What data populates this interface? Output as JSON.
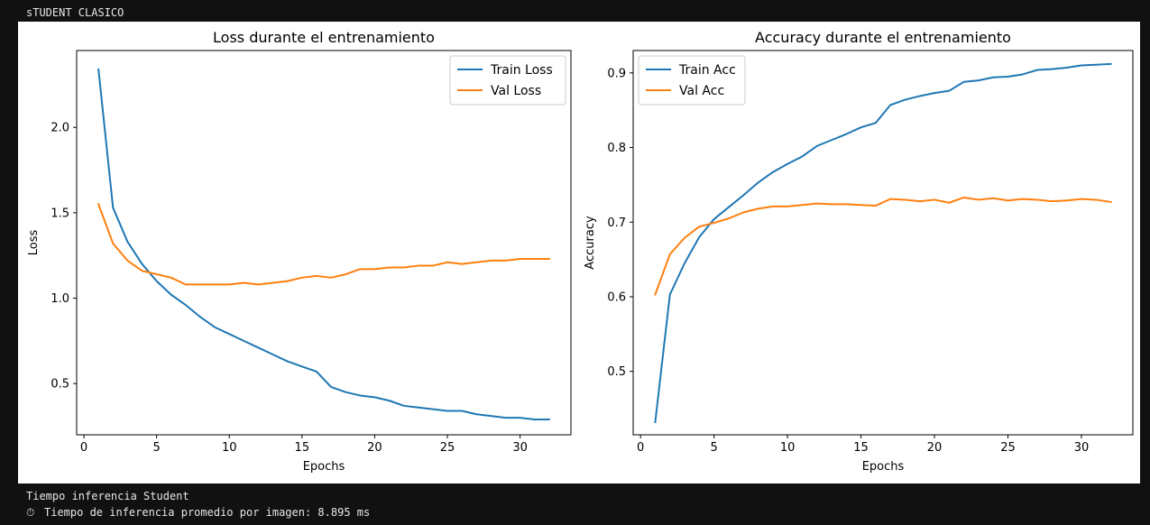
{
  "cell": {
    "header_text": "sTUDENT CLASICO",
    "output_line_1": "Tiempo inferencia Student",
    "output_line_2": "Tiempo de inferencia promedio por imagen: 8.895 ms",
    "output_line_2_icon": "stopwatch-icon"
  },
  "chart_data": [
    {
      "type": "line",
      "title": "Loss durante el entrenamiento",
      "xlabel": "Epochs",
      "ylabel": "Loss",
      "xlim": [
        -0.5,
        33.5
      ],
      "ylim": [
        0.2,
        2.45
      ],
      "xticks": [
        0,
        5,
        10,
        15,
        20,
        25,
        30
      ],
      "yticks": [
        0.5,
        1.0,
        1.5,
        2.0
      ],
      "grid": false,
      "legend": "top-right",
      "x": [
        1,
        2,
        3,
        4,
        5,
        6,
        7,
        8,
        9,
        10,
        11,
        12,
        13,
        14,
        15,
        16,
        17,
        18,
        19,
        20,
        21,
        22,
        23,
        24,
        25,
        26,
        27,
        28,
        29,
        30,
        31,
        32
      ],
      "series": [
        {
          "name": "Train Loss",
          "color": "#1f77b4",
          "values": [
            2.34,
            1.53,
            1.33,
            1.2,
            1.1,
            1.02,
            0.96,
            0.89,
            0.83,
            0.79,
            0.75,
            0.71,
            0.67,
            0.63,
            0.6,
            0.57,
            0.48,
            0.45,
            0.43,
            0.42,
            0.4,
            0.37,
            0.36,
            0.35,
            0.34,
            0.34,
            0.32,
            0.31,
            0.3,
            0.3,
            0.29,
            0.29
          ]
        },
        {
          "name": "Val Loss",
          "color": "#ff7f0e",
          "values": [
            1.55,
            1.32,
            1.22,
            1.16,
            1.14,
            1.12,
            1.08,
            1.08,
            1.08,
            1.08,
            1.09,
            1.08,
            1.09,
            1.1,
            1.12,
            1.13,
            1.12,
            1.14,
            1.17,
            1.17,
            1.18,
            1.18,
            1.19,
            1.19,
            1.21,
            1.2,
            1.21,
            1.22,
            1.22,
            1.23,
            1.23,
            1.23
          ]
        }
      ]
    },
    {
      "type": "line",
      "title": "Accuracy durante el entrenamiento",
      "xlabel": "Epochs",
      "ylabel": "Accuracy",
      "xlim": [
        -0.5,
        33.5
      ],
      "ylim": [
        0.415,
        0.93
      ],
      "xticks": [
        0,
        5,
        10,
        15,
        20,
        25,
        30
      ],
      "yticks": [
        0.5,
        0.6,
        0.7,
        0.8,
        0.9
      ],
      "grid": false,
      "legend": "top-left",
      "x": [
        1,
        2,
        3,
        4,
        5,
        6,
        7,
        8,
        9,
        10,
        11,
        12,
        13,
        14,
        15,
        16,
        17,
        18,
        19,
        20,
        21,
        22,
        23,
        24,
        25,
        26,
        27,
        28,
        29,
        30,
        31,
        32
      ],
      "series": [
        {
          "name": "Train Acc",
          "color": "#1f77b4",
          "values": [
            0.432,
            0.603,
            0.645,
            0.68,
            0.704,
            0.72,
            0.736,
            0.753,
            0.767,
            0.778,
            0.788,
            0.802,
            0.81,
            0.818,
            0.827,
            0.833,
            0.857,
            0.864,
            0.869,
            0.873,
            0.876,
            0.888,
            0.89,
            0.894,
            0.895,
            0.898,
            0.904,
            0.905,
            0.907,
            0.91,
            0.911,
            0.912
          ]
        },
        {
          "name": "Val Acc",
          "color": "#ff7f0e",
          "values": [
            0.603,
            0.657,
            0.679,
            0.694,
            0.699,
            0.705,
            0.713,
            0.718,
            0.721,
            0.721,
            0.723,
            0.725,
            0.724,
            0.724,
            0.723,
            0.722,
            0.731,
            0.73,
            0.728,
            0.73,
            0.726,
            0.733,
            0.73,
            0.732,
            0.729,
            0.731,
            0.73,
            0.728,
            0.729,
            0.731,
            0.73,
            0.727
          ]
        }
      ]
    }
  ]
}
